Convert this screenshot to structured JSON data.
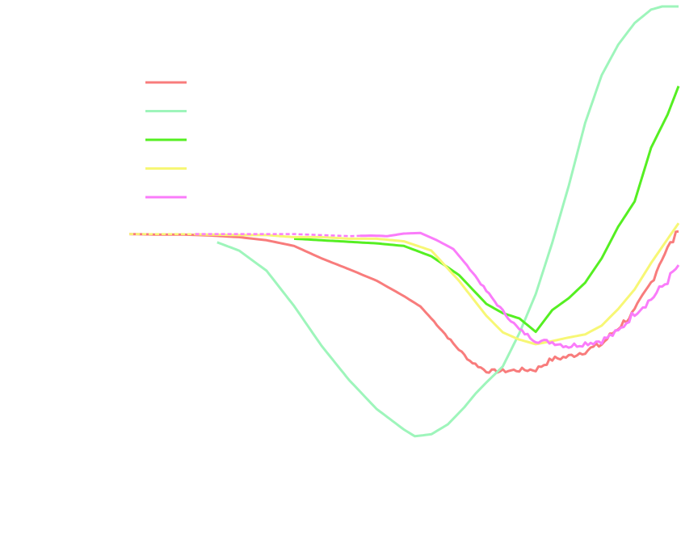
{
  "chart_data": {
    "type": "line",
    "title": "",
    "xlabel": "",
    "ylabel": "",
    "xlim": [
      0,
      100
    ],
    "ylim": [
      0,
      100
    ],
    "grid": false,
    "legend_location": "upper-left",
    "series": [
      {
        "name": "",
        "color": "#f87c7c",
        "style": "solid",
        "noisy_from": 55,
        "x": [
          0,
          5,
          10,
          15,
          20,
          25,
          30,
          35,
          40,
          45,
          50,
          53,
          56,
          59,
          62,
          65,
          68,
          71,
          74,
          77,
          80,
          83,
          86,
          89,
          92,
          95,
          97,
          100
        ],
        "y": [
          56,
          55.9,
          55.9,
          55.7,
          55.4,
          54.8,
          53.7,
          51.3,
          49.2,
          47,
          44,
          42,
          38.5,
          34.8,
          31.5,
          29.5,
          29.5,
          29.7,
          29.8,
          31.8,
          32.3,
          33.4,
          34.7,
          37.9,
          41,
          46.6,
          51.5,
          56.5
        ]
      },
      {
        "name": "",
        "color": "#9ef5bb",
        "style": "solid",
        "x": [
          16,
          20,
          25,
          30,
          35,
          40,
          45,
          50,
          52,
          55,
          58,
          61,
          63,
          65,
          68,
          71,
          74,
          77,
          80,
          83,
          86,
          89,
          92,
          95,
          97,
          98.5,
          100
        ],
        "y": [
          54.4,
          52.8,
          48.9,
          42.1,
          34.4,
          27.8,
          22.2,
          18.2,
          16.9,
          17.3,
          19.2,
          22.5,
          25.1,
          27.3,
          30.4,
          36.8,
          44.4,
          54.3,
          65.3,
          77.5,
          86.7,
          92.6,
          96.8,
          99.4,
          100,
          100,
          100
        ]
      },
      {
        "name": "",
        "color": "#55ef22",
        "style": "solid",
        "x": [
          30,
          35,
          40,
          45,
          50,
          55,
          60,
          65,
          68,
          71,
          74,
          77,
          80,
          83,
          86,
          89,
          92,
          95,
          98,
          100
        ],
        "y": [
          55.1,
          54.8,
          54.5,
          54.2,
          53.7,
          51.7,
          48.1,
          42.5,
          40.7,
          39.7,
          37.1,
          41.3,
          43.6,
          46.6,
          51.3,
          57.4,
          62.3,
          72.7,
          79.1,
          84.6
        ]
      },
      {
        "name": "",
        "color": "#f7f775",
        "style": "solid",
        "dashed_until": 12,
        "x": [
          0,
          5,
          10,
          15,
          20,
          25,
          30,
          35,
          40,
          45,
          50,
          55,
          60,
          65,
          68,
          71,
          74,
          77,
          80,
          83,
          86,
          89,
          92,
          95,
          97,
          100
        ],
        "y": [
          56,
          56,
          56,
          55.9,
          55.8,
          55.8,
          55.4,
          55.4,
          55.1,
          55.1,
          54.6,
          52.8,
          47,
          40.2,
          37,
          35.6,
          34.7,
          35.3,
          36,
          36.6,
          38.3,
          41.5,
          45.3,
          50.4,
          53.5,
          58.1
        ]
      },
      {
        "name": "",
        "color": "#fa7cfa",
        "style": "dashed",
        "solid_from": 42,
        "noisy_from": 62,
        "x": [
          12,
          20,
          30,
          40,
          44,
          47,
          50,
          53,
          56,
          59,
          62,
          65,
          68,
          71,
          74,
          77,
          80,
          83,
          86,
          89,
          92,
          95,
          98,
          100
        ],
        "y": [
          56,
          56,
          56,
          55.6,
          55.7,
          55.6,
          56.1,
          56.2,
          54.8,
          53.1,
          49.3,
          45,
          41.1,
          37.5,
          35.4,
          35.1,
          34.3,
          34.9,
          35.4,
          37.1,
          40.8,
          43.4,
          47,
          50
        ]
      }
    ]
  }
}
